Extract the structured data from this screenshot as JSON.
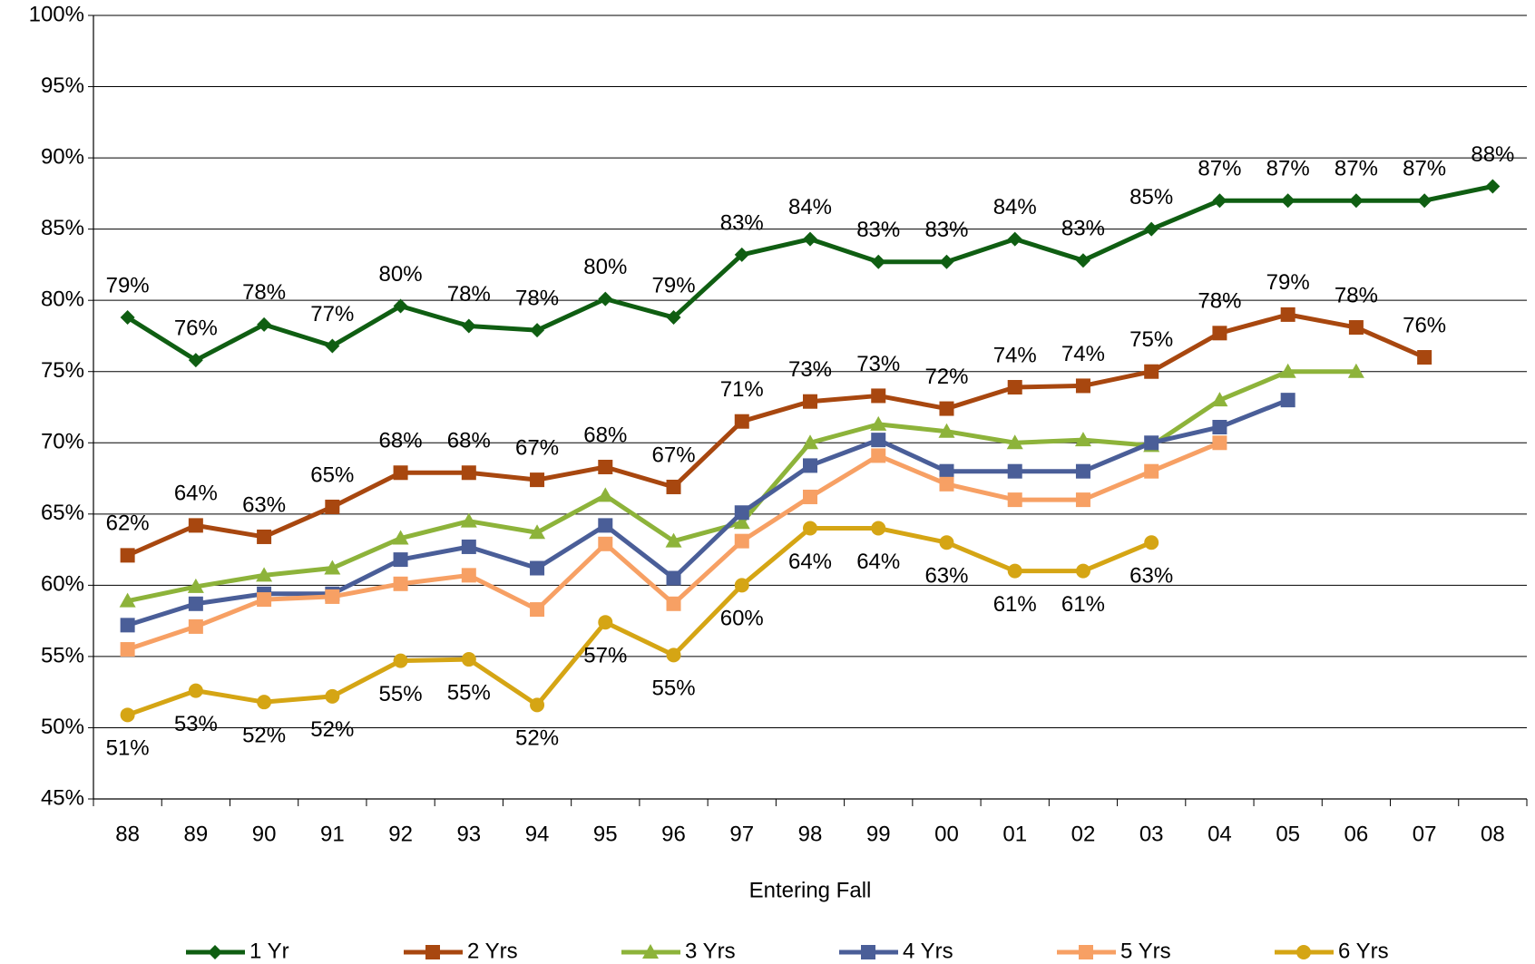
{
  "chart_data": {
    "type": "line",
    "x_label": "Entering Fall",
    "categories": [
      "88",
      "89",
      "90",
      "91",
      "92",
      "93",
      "94",
      "95",
      "96",
      "97",
      "98",
      "99",
      "00",
      "01",
      "02",
      "03",
      "04",
      "05",
      "06",
      "07",
      "08"
    ],
    "ylim": [
      45,
      100
    ],
    "yticks": [
      {
        "value": 45,
        "label": "45%"
      },
      {
        "value": 50,
        "label": "50%"
      },
      {
        "value": 55,
        "label": "55%"
      },
      {
        "value": 60,
        "label": "60%"
      },
      {
        "value": 65,
        "label": "65%"
      },
      {
        "value": 70,
        "label": "70%"
      },
      {
        "value": 75,
        "label": "75%"
      },
      {
        "value": 80,
        "label": "80%"
      },
      {
        "value": 85,
        "label": "85%"
      },
      {
        "value": 90,
        "label": "90%"
      },
      {
        "value": 95,
        "label": "95%"
      },
      {
        "value": 100,
        "label": "100%"
      }
    ],
    "grid": true,
    "legend": "bottom",
    "series": [
      {
        "name": "1 Yr",
        "color": "#0f5e12",
        "marker": "diamond",
        "values": [
          78.8,
          75.8,
          78.3,
          76.8,
          79.6,
          78.2,
          77.9,
          80.1,
          78.8,
          83.2,
          84.3,
          82.7,
          82.7,
          84.3,
          82.8,
          85.0,
          87.0,
          87.0,
          87.0,
          87.0,
          88.0
        ],
        "value_labels": [
          "79%",
          "76%",
          "78%",
          "77%",
          "80%",
          "78%",
          "78%",
          "80%",
          "79%",
          "83%",
          "84%",
          "83%",
          "83%",
          "84%",
          "83%",
          "85%",
          "87%",
          "87%",
          "87%",
          "87%",
          "88%"
        ]
      },
      {
        "name": "2 Yrs",
        "color": "#a8470f",
        "marker": "square",
        "values": [
          62.1,
          64.2,
          63.4,
          65.5,
          67.9,
          67.9,
          67.4,
          68.3,
          66.9,
          71.5,
          72.9,
          73.3,
          72.4,
          73.9,
          74.0,
          75.0,
          77.7,
          79.0,
          78.1,
          76.0,
          null
        ],
        "value_labels": [
          "62%",
          "64%",
          "63%",
          "65%",
          "68%",
          "68%",
          "67%",
          "68%",
          "67%",
          "71%",
          "73%",
          "73%",
          "72%",
          "74%",
          "74%",
          "75%",
          "78%",
          "79%",
          "78%",
          "76%",
          null
        ]
      },
      {
        "name": "3 Yrs",
        "color": "#8db33a",
        "marker": "triangle",
        "values": [
          58.9,
          59.9,
          60.7,
          61.2,
          63.3,
          64.5,
          63.7,
          66.3,
          63.1,
          64.4,
          70.0,
          71.3,
          70.8,
          70.0,
          70.2,
          69.8,
          73.0,
          75.0,
          75.0,
          null,
          null
        ]
      },
      {
        "name": "4 Yrs",
        "color": "#4a5e98",
        "marker": "square",
        "values": [
          57.2,
          58.7,
          59.4,
          59.4,
          61.8,
          62.7,
          61.2,
          64.2,
          60.5,
          65.1,
          68.4,
          70.2,
          68.0,
          68.0,
          68.0,
          70.0,
          71.1,
          73.0,
          null,
          null,
          null
        ]
      },
      {
        "name": "5 Yrs",
        "color": "#f7a064",
        "marker": "square",
        "values": [
          55.5,
          57.1,
          59.0,
          59.2,
          60.1,
          60.7,
          58.3,
          62.9,
          58.7,
          63.1,
          66.2,
          69.1,
          67.1,
          66.0,
          66.0,
          68.0,
          70.0,
          null,
          null,
          null,
          null
        ]
      },
      {
        "name": "6 Yrs",
        "color": "#d5a514",
        "marker": "circle",
        "values": [
          50.9,
          52.6,
          51.8,
          52.2,
          54.7,
          54.8,
          51.6,
          57.4,
          55.1,
          60.0,
          64.0,
          64.0,
          63.0,
          61.0,
          61.0,
          63.0,
          null,
          null,
          null,
          null,
          null
        ],
        "value_labels": [
          "51%",
          "53%",
          "52%",
          "52%",
          "55%",
          "55%",
          "52%",
          "57%",
          "55%",
          "60%",
          "64%",
          "64%",
          "63%",
          "61%",
          "61%",
          "63%",
          null,
          null,
          null,
          null,
          null
        ]
      }
    ]
  }
}
